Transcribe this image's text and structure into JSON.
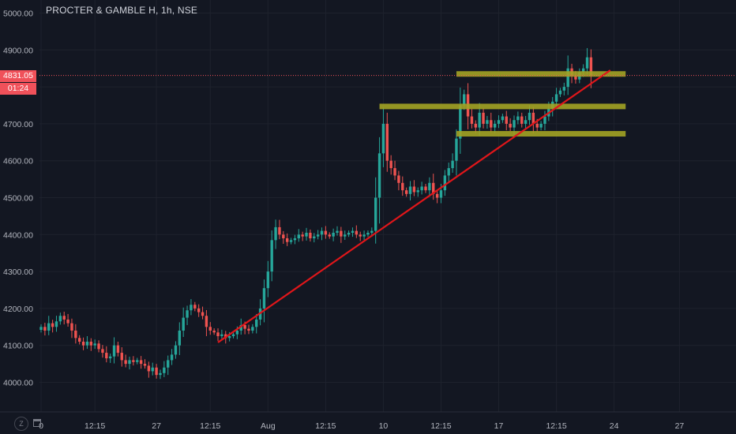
{
  "header": {
    "title": "PROCTER & GAMBLE H, 1h, NSE"
  },
  "last_price": {
    "value": "4831.05",
    "countdown": "01:24",
    "color": "#f0515a"
  },
  "controls": {
    "zoom_label": "Z"
  },
  "colors": {
    "up": "#26a69a",
    "down": "#ef5350",
    "trendline": "#e0161a",
    "zone": "#a3a324",
    "grid": "#1e222d",
    "background": "#131722"
  },
  "chart_data": {
    "type": "candlestick",
    "title": "PROCTER & GAMBLE H, 1h, NSE",
    "ylim": [
      3960,
      5020
    ],
    "yticks": [
      "5000.00",
      "4900.00",
      "4800.00",
      "4700.00",
      "4600.00",
      "4500.00",
      "4400.00",
      "4300.00",
      "4200.00",
      "4100.00",
      "4000.00"
    ],
    "xticks": [
      {
        "label": "0",
        "i": 0
      },
      {
        "label": "12:15",
        "i": 14
      },
      {
        "label": "27",
        "i": 30
      },
      {
        "label": "12:15",
        "i": 44
      },
      {
        "label": "Aug",
        "i": 59
      },
      {
        "label": "12:15",
        "i": 74
      },
      {
        "label": "10",
        "i": 89
      },
      {
        "label": "12:15",
        "i": 104
      },
      {
        "label": "17",
        "i": 119
      },
      {
        "label": "12:15",
        "i": 134
      },
      {
        "label": "24",
        "i": 149
      },
      {
        "label": "27",
        "i": 166
      }
    ],
    "closes": [
      4150,
      4140,
      4160,
      4150,
      4165,
      4180,
      4170,
      4160,
      4140,
      4120,
      4110,
      4100,
      4110,
      4100,
      4105,
      4090,
      4080,
      4065,
      4070,
      4100,
      4080,
      4060,
      4050,
      4060,
      4055,
      4060,
      4050,
      4045,
      4030,
      4040,
      4020,
      4025,
      4040,
      4060,
      4075,
      4100,
      4140,
      4175,
      4195,
      4210,
      4200,
      4190,
      4180,
      4150,
      4140,
      4135,
      4125,
      4130,
      4120,
      4125,
      4130,
      4140,
      4155,
      4145,
      4140,
      4150,
      4170,
      4200,
      4255,
      4300,
      4385,
      4420,
      4400,
      4390,
      4380,
      4385,
      4390,
      4400,
      4395,
      4405,
      4390,
      4395,
      4400,
      4410,
      4400,
      4395,
      4405,
      4410,
      4395,
      4400,
      4405,
      4410,
      4400,
      4395,
      4400,
      4405,
      4410,
      4500,
      4620,
      4700,
      4600,
      4580,
      4560,
      4540,
      4520,
      4510,
      4530,
      4515,
      4520,
      4530,
      4520,
      4540,
      4510,
      4500,
      4520,
      4560,
      4580,
      4600,
      4660,
      4750,
      4780,
      4720,
      4700,
      4690,
      4730,
      4700,
      4710,
      4690,
      4700,
      4710,
      4720,
      4700,
      4690,
      4710,
      4720,
      4700,
      4710,
      4730,
      4700,
      4690,
      4700,
      4720,
      4740,
      4760,
      4780,
      4790,
      4800,
      4850,
      4830,
      4820,
      4840,
      4850,
      4880,
      4831
    ],
    "trendline": {
      "from": {
        "i": 46,
        "price": 4108
      },
      "to": {
        "i": 148,
        "price": 4845
      }
    },
    "zones": [
      {
        "from_i": 108,
        "to_i": 152,
        "price": 4835
      },
      {
        "from_i": 88,
        "to_i": 152,
        "price": 4747
      },
      {
        "from_i": 108,
        "to_i": 152,
        "price": 4673
      }
    ],
    "grid": true,
    "price_line": 4831.05
  }
}
